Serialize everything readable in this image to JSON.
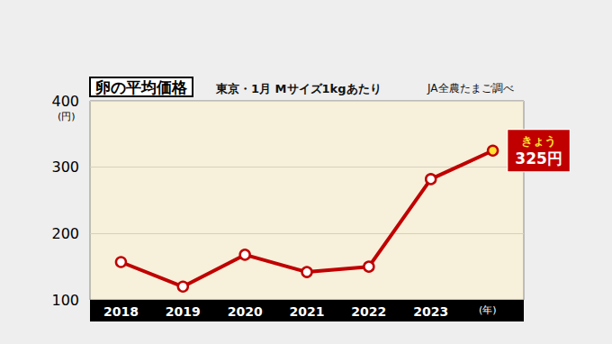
{
  "chart_data": {
    "type": "line",
    "title": "卵の平均価格",
    "subtitle": "東京・1月 Mサイズ1kgあたり",
    "source": "JA全農たまご調べ",
    "categories": [
      "2018",
      "2019",
      "2020",
      "2021",
      "2022",
      "2023",
      null
    ],
    "values": [
      157,
      120,
      168,
      142,
      150,
      282,
      325
    ],
    "value_labels": [
      null,
      null,
      null,
      null,
      null,
      null,
      "325円"
    ],
    "annotations": [
      {
        "text": "きょう"
      }
    ],
    "y_unit": "(円)",
    "x_unit": "(年)",
    "ylim": [
      100,
      400
    ],
    "yticks": [
      100,
      200,
      300,
      400
    ],
    "color": "#c00000",
    "grid": true,
    "marker": "circle"
  }
}
